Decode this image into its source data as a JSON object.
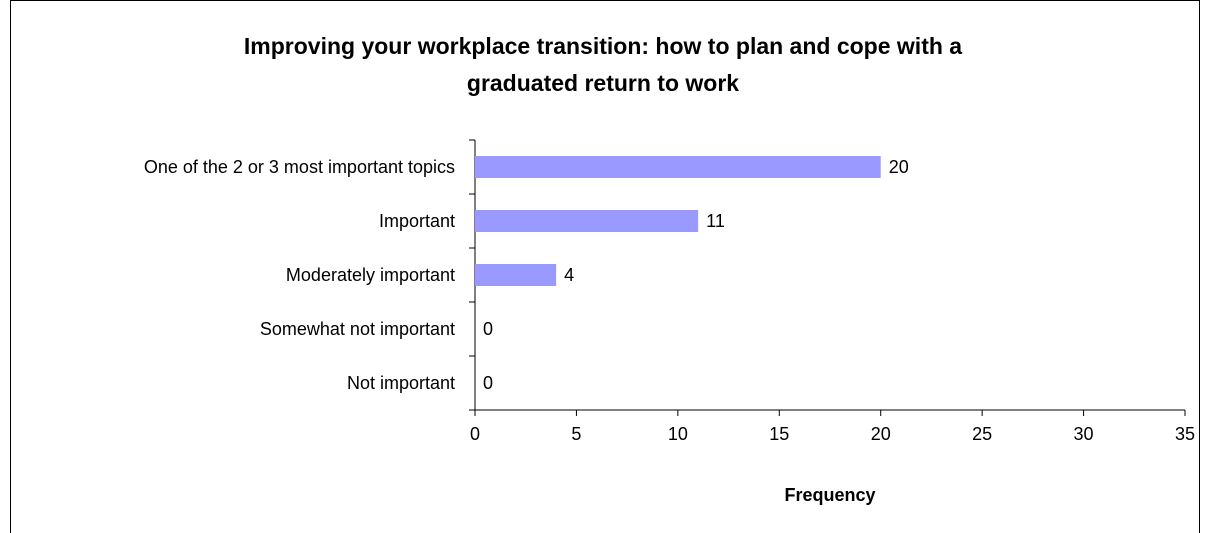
{
  "chart_data": {
    "type": "barh",
    "title": [
      "Improving your workplace transition: how to plan and cope with a",
      "graduated return to work"
    ],
    "categories": [
      "One of the 2 or 3 most important topics",
      "Important",
      "Moderately important",
      "Somewhat not important",
      "Not important"
    ],
    "values": [
      20,
      11,
      4,
      0,
      0
    ],
    "color": "#9999ff",
    "xlabel": "Frequency",
    "xlim": [
      0,
      35
    ],
    "xticks": [
      0,
      5,
      10,
      15,
      20,
      25,
      30,
      35
    ],
    "grid": false
  }
}
